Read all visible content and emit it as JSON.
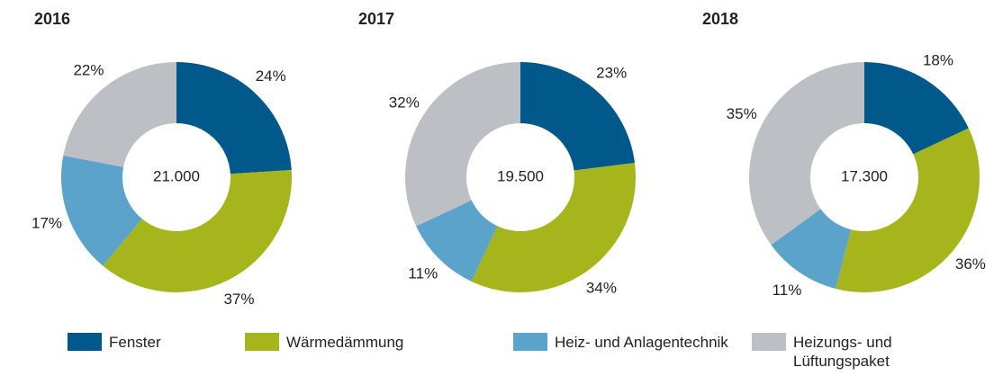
{
  "chart_data": [
    {
      "type": "donut",
      "title": "2016",
      "center_label": "21.000",
      "categories": [
        "Fenster",
        "Wärmedämmung",
        "Heiz- und Anlagentechnik",
        "Heizungs- und Lüftungspaket"
      ],
      "values": [
        24,
        37,
        17,
        22
      ],
      "value_labels": [
        "24%",
        "37%",
        "17%",
        "22%"
      ],
      "colors": [
        "#00598a",
        "#a5b51b",
        "#5ba3cb",
        "#bcbfc3"
      ]
    },
    {
      "type": "donut",
      "title": "2017",
      "center_label": "19.500",
      "categories": [
        "Fenster",
        "Wärmedämmung",
        "Heiz- und Anlagentechnik",
        "Heizungs- und Lüftungspaket"
      ],
      "values": [
        23,
        34,
        11,
        32
      ],
      "value_labels": [
        "23%",
        "34%",
        "11%",
        "32%"
      ],
      "colors": [
        "#00598a",
        "#a5b51b",
        "#5ba3cb",
        "#bcbfc3"
      ]
    },
    {
      "type": "donut",
      "title": "2018",
      "center_label": "17.300",
      "categories": [
        "Fenster",
        "Wärmedämmung",
        "Heiz- und Anlagentechnik",
        "Heizungs- und Lüftungspaket"
      ],
      "values": [
        18,
        36,
        11,
        35
      ],
      "value_labels": [
        "18%",
        "36%",
        "11%",
        "35%"
      ],
      "colors": [
        "#00598a",
        "#a5b51b",
        "#5ba3cb",
        "#bcbfc3"
      ]
    }
  ]
}
